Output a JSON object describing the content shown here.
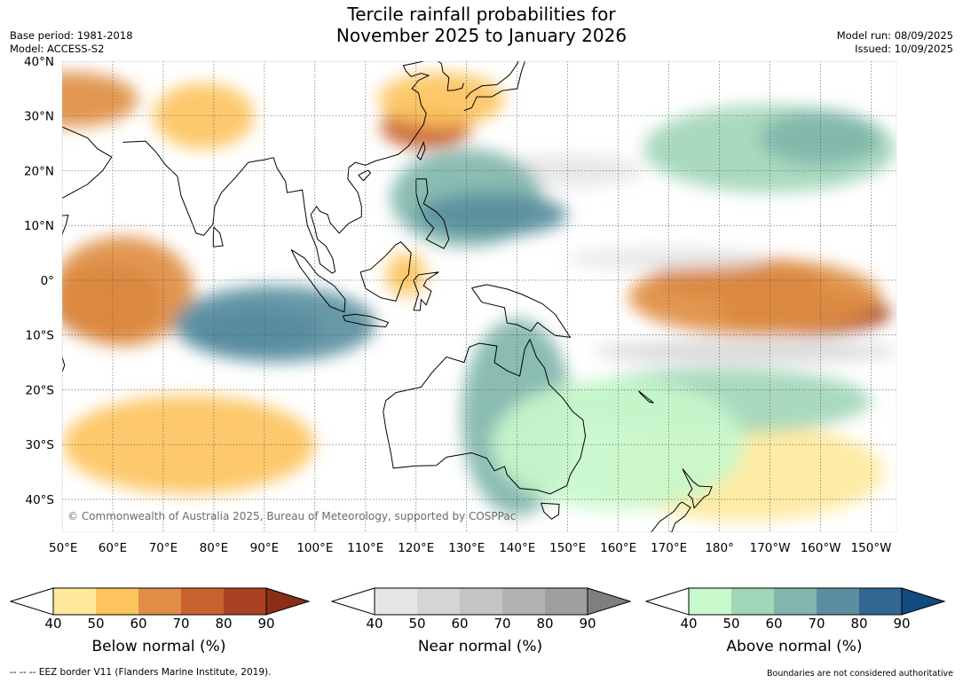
{
  "title_line1": "Tercile rainfall probabilities for",
  "title_line2": "November 2025 to January 2026",
  "meta_left": [
    "Base period: 1981-2018",
    "Model: ACCESS-S2"
  ],
  "meta_right": [
    "Model run: 08/09/2025",
    "Issued: 10/09/2025"
  ],
  "map": {
    "lon_range": [
      50,
      215
    ],
    "lat_range": [
      -46,
      40
    ],
    "lon_ticks": [
      {
        "lon": 50,
        "label": "50°E"
      },
      {
        "lon": 60,
        "label": "60°E"
      },
      {
        "lon": 70,
        "label": "70°E"
      },
      {
        "lon": 80,
        "label": "80°E"
      },
      {
        "lon": 90,
        "label": "90°E"
      },
      {
        "lon": 100,
        "label": "100°E"
      },
      {
        "lon": 110,
        "label": "110°E"
      },
      {
        "lon": 120,
        "label": "120°E"
      },
      {
        "lon": 130,
        "label": "130°E"
      },
      {
        "lon": 140,
        "label": "140°E"
      },
      {
        "lon": 150,
        "label": "150°E"
      },
      {
        "lon": 160,
        "label": "160°E"
      },
      {
        "lon": 170,
        "label": "170°E"
      },
      {
        "lon": 180,
        "label": "180°"
      },
      {
        "lon": 190,
        "label": "170°W"
      },
      {
        "lon": 200,
        "label": "160°W"
      },
      {
        "lon": 210,
        "label": "150°W"
      }
    ],
    "lat_ticks": [
      {
        "lat": 40,
        "label": "40°N"
      },
      {
        "lat": 30,
        "label": "30°N"
      },
      {
        "lat": 20,
        "label": "20°N"
      },
      {
        "lat": 10,
        "label": "10°N"
      },
      {
        "lat": 0,
        "label": "0°"
      },
      {
        "lat": -10,
        "label": "10°S"
      },
      {
        "lat": -20,
        "label": "20°S"
      },
      {
        "lat": -30,
        "label": "30°S"
      },
      {
        "lat": -40,
        "label": "40°S"
      }
    ],
    "copyright": "© Commonwealth of Australia 2025, Bureau of Meteorology, supported by COSPPac",
    "regions": [
      {
        "category": "below",
        "level": 60,
        "lon": 52,
        "lat": 33,
        "w": 26,
        "h": 10
      },
      {
        "category": "below",
        "level": 50,
        "lon": 78,
        "lat": 30,
        "w": 20,
        "h": 12
      },
      {
        "category": "below",
        "level": 70,
        "lon": 122,
        "lat": 28,
        "w": 18,
        "h": 8
      },
      {
        "category": "below",
        "level": 50,
        "lon": 125,
        "lat": 33,
        "w": 25,
        "h": 10
      },
      {
        "category": "below",
        "level": 80,
        "lon": 59,
        "lat": -4,
        "w": 22,
        "h": 14
      },
      {
        "category": "below",
        "level": 60,
        "lon": 62,
        "lat": -2,
        "w": 28,
        "h": 20
      },
      {
        "category": "below",
        "level": 80,
        "lon": 184,
        "lat": 0,
        "w": 34,
        "h": 7
      },
      {
        "category": "below",
        "level": 80,
        "lon": 197,
        "lat": -6,
        "w": 34,
        "h": 8
      },
      {
        "category": "below",
        "level": 60,
        "lon": 187,
        "lat": -3,
        "w": 50,
        "h": 14
      },
      {
        "category": "below",
        "level": 50,
        "lon": 75,
        "lat": -30,
        "w": 50,
        "h": 18
      },
      {
        "category": "below",
        "level": 40,
        "lon": 185,
        "lat": -35,
        "w": 55,
        "h": 18
      },
      {
        "category": "below",
        "level": 50,
        "lon": 118,
        "lat": 1,
        "w": 8,
        "h": 8
      },
      {
        "category": "near",
        "level": 50,
        "lon": 185,
        "lat": -13,
        "w": 60,
        "h": 4
      },
      {
        "category": "near",
        "level": 40,
        "lon": 150,
        "lat": 20,
        "w": 30,
        "h": 6
      },
      {
        "category": "near",
        "level": 40,
        "lon": 170,
        "lat": 4,
        "w": 40,
        "h": 4
      },
      {
        "category": "above",
        "level": 80,
        "lon": 88,
        "lat": -9,
        "w": 26,
        "h": 8
      },
      {
        "category": "above",
        "level": 70,
        "lon": 92,
        "lat": -8,
        "w": 40,
        "h": 14
      },
      {
        "category": "above",
        "level": 60,
        "lon": 130,
        "lat": 15,
        "w": 30,
        "h": 18
      },
      {
        "category": "above",
        "level": 70,
        "lon": 135,
        "lat": 12,
        "w": 30,
        "h": 8
      },
      {
        "category": "above",
        "level": 60,
        "lon": 140,
        "lat": -25,
        "w": 22,
        "h": 36
      },
      {
        "category": "above",
        "level": 50,
        "lon": 190,
        "lat": 24,
        "w": 50,
        "h": 16
      },
      {
        "category": "above",
        "level": 60,
        "lon": 200,
        "lat": 26,
        "w": 24,
        "h": 10
      },
      {
        "category": "above",
        "level": 50,
        "lon": 180,
        "lat": -22,
        "w": 60,
        "h": 12
      },
      {
        "category": "above",
        "level": 40,
        "lon": 160,
        "lat": -30,
        "w": 50,
        "h": 24
      }
    ]
  },
  "colorbars": [
    {
      "label": "Below normal (%)",
      "ticks": [
        "40",
        "50",
        "60",
        "70",
        "80",
        "90"
      ],
      "colors": [
        "#ffffff",
        "#fee99d",
        "#fdc45e",
        "#e08e43",
        "#c9622e",
        "#a84222",
        "#8b2e18"
      ]
    },
    {
      "label": "Near normal (%)",
      "ticks": [
        "40",
        "50",
        "60",
        "70",
        "80",
        "90"
      ],
      "colors": [
        "#ffffff",
        "#e6e6e6",
        "#d5d5d5",
        "#c4c4c4",
        "#b2b2b2",
        "#9f9f9f",
        "#7f7f7f"
      ]
    },
    {
      "label": "Above normal (%)",
      "ticks": [
        "40",
        "50",
        "60",
        "70",
        "80",
        "90"
      ],
      "colors": [
        "#ffffff",
        "#c8f9cc",
        "#a2d6b8",
        "#80b6ab",
        "#5a8fa0",
        "#326693",
        "#134a80"
      ]
    }
  ],
  "footer_left": "--  --  -- EEZ border V11 (Flanders Marine Institute, 2019).",
  "footer_right": "Boundaries are not considered authoritative"
}
